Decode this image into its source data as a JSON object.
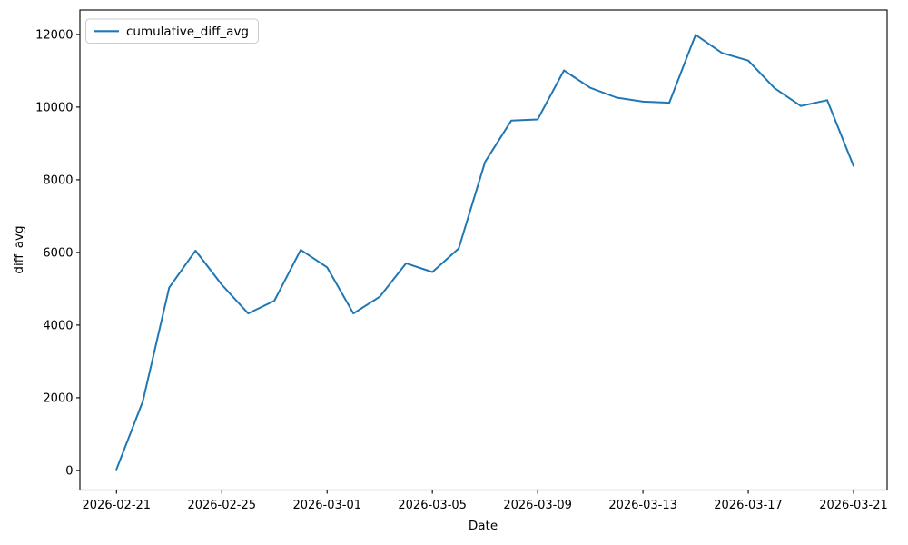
{
  "figure": {
    "background": "#ffffff"
  },
  "chart_data": {
    "type": "line",
    "title": "",
    "xlabel": "Date",
    "ylabel": "diff_avg",
    "grid": false,
    "axis_color": "#000000",
    "text_color": "#000000",
    "legend": {
      "position": "upper left",
      "entries": [
        {
          "label": "cumulative_diff_avg",
          "color": "#1f77b4"
        }
      ]
    },
    "x_tick_labels": [
      "2026-02-21",
      "2026-02-25",
      "2026-03-01",
      "2026-03-05",
      "2026-03-09",
      "2026-03-13",
      "2026-03-17",
      "2026-03-21"
    ],
    "y_ticks": [
      0,
      2000,
      4000,
      6000,
      8000,
      10000,
      12000
    ],
    "ylim": [
      -540,
      12670
    ],
    "x": [
      "2026-02-21",
      "2026-02-22",
      "2026-02-23",
      "2026-02-24",
      "2026-02-25",
      "2026-02-26",
      "2026-02-27",
      "2026-02-28",
      "2026-03-01",
      "2026-03-02",
      "2026-03-03",
      "2026-03-04",
      "2026-03-05",
      "2026-03-06",
      "2026-03-07",
      "2026-03-08",
      "2026-03-09",
      "2026-03-10",
      "2026-03-11",
      "2026-03-12",
      "2026-03-13",
      "2026-03-14",
      "2026-03-15",
      "2026-03-16",
      "2026-03-17",
      "2026-03-18",
      "2026-03-19",
      "2026-03-20",
      "2026-03-21"
    ],
    "series": [
      {
        "name": "cumulative_diff_avg",
        "color": "#1f77b4",
        "values": [
          30,
          1900,
          5030,
          6050,
          5110,
          4320,
          4670,
          6070,
          5590,
          4320,
          4780,
          5700,
          5460,
          6110,
          8490,
          9630,
          9660,
          11010,
          10530,
          10260,
          10150,
          10120,
          11990,
          11490,
          11280,
          10520,
          10030,
          10190,
          8380
        ]
      }
    ]
  }
}
